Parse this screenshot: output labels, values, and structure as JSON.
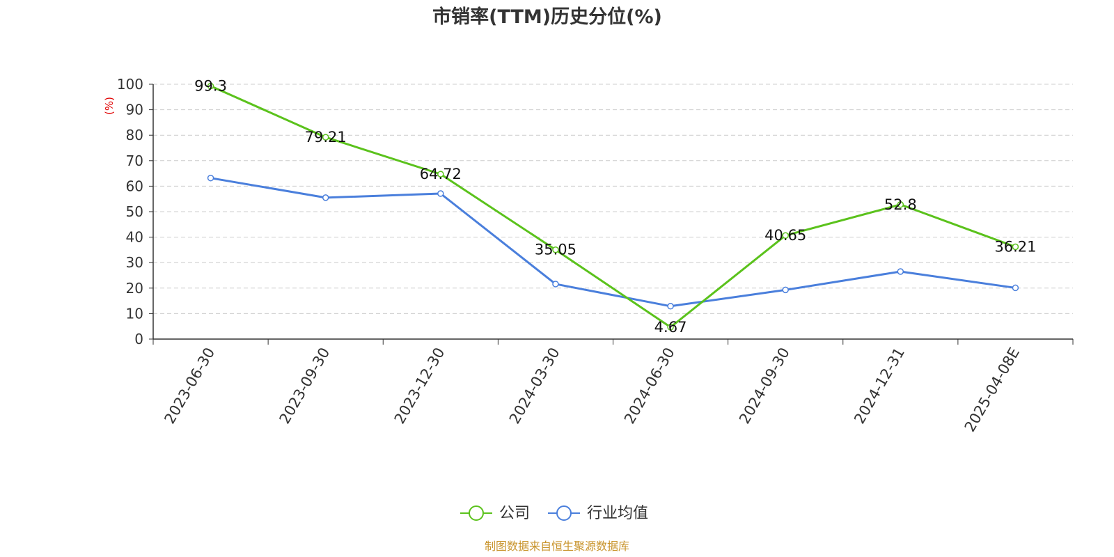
{
  "chart_data": {
    "type": "line",
    "title": "市销率(TTM)历史分位(%)",
    "y_unit_label": "(%)",
    "ylim": [
      0,
      100
    ],
    "y_ticks": [
      0,
      10,
      20,
      30,
      40,
      50,
      60,
      70,
      80,
      90,
      100
    ],
    "categories": [
      "2023-06-30",
      "2023-09-30",
      "2023-12-30",
      "2024-03-30",
      "2024-06-30",
      "2024-09-30",
      "2024-12-31",
      "2025-04-08E"
    ],
    "grid": true,
    "legend_position": "bottom-center",
    "series": [
      {
        "name": "公司",
        "color": "#5bc21c",
        "show_labels": true,
        "values": [
          99.3,
          79.21,
          64.72,
          35.05,
          4.67,
          40.65,
          52.8,
          36.21
        ]
      },
      {
        "name": "行业均值",
        "color": "#4a7fdc",
        "show_labels": false,
        "values": [
          63.2,
          55.5,
          57.1,
          21.6,
          12.9,
          19.3,
          26.5,
          20.1
        ]
      }
    ]
  },
  "colors": {
    "unit_label": "#e00000",
    "source": "#c8932a",
    "axis": "#333333",
    "grid": "#cccccc"
  },
  "source_text": "制图数据来自恒生聚源数据库"
}
